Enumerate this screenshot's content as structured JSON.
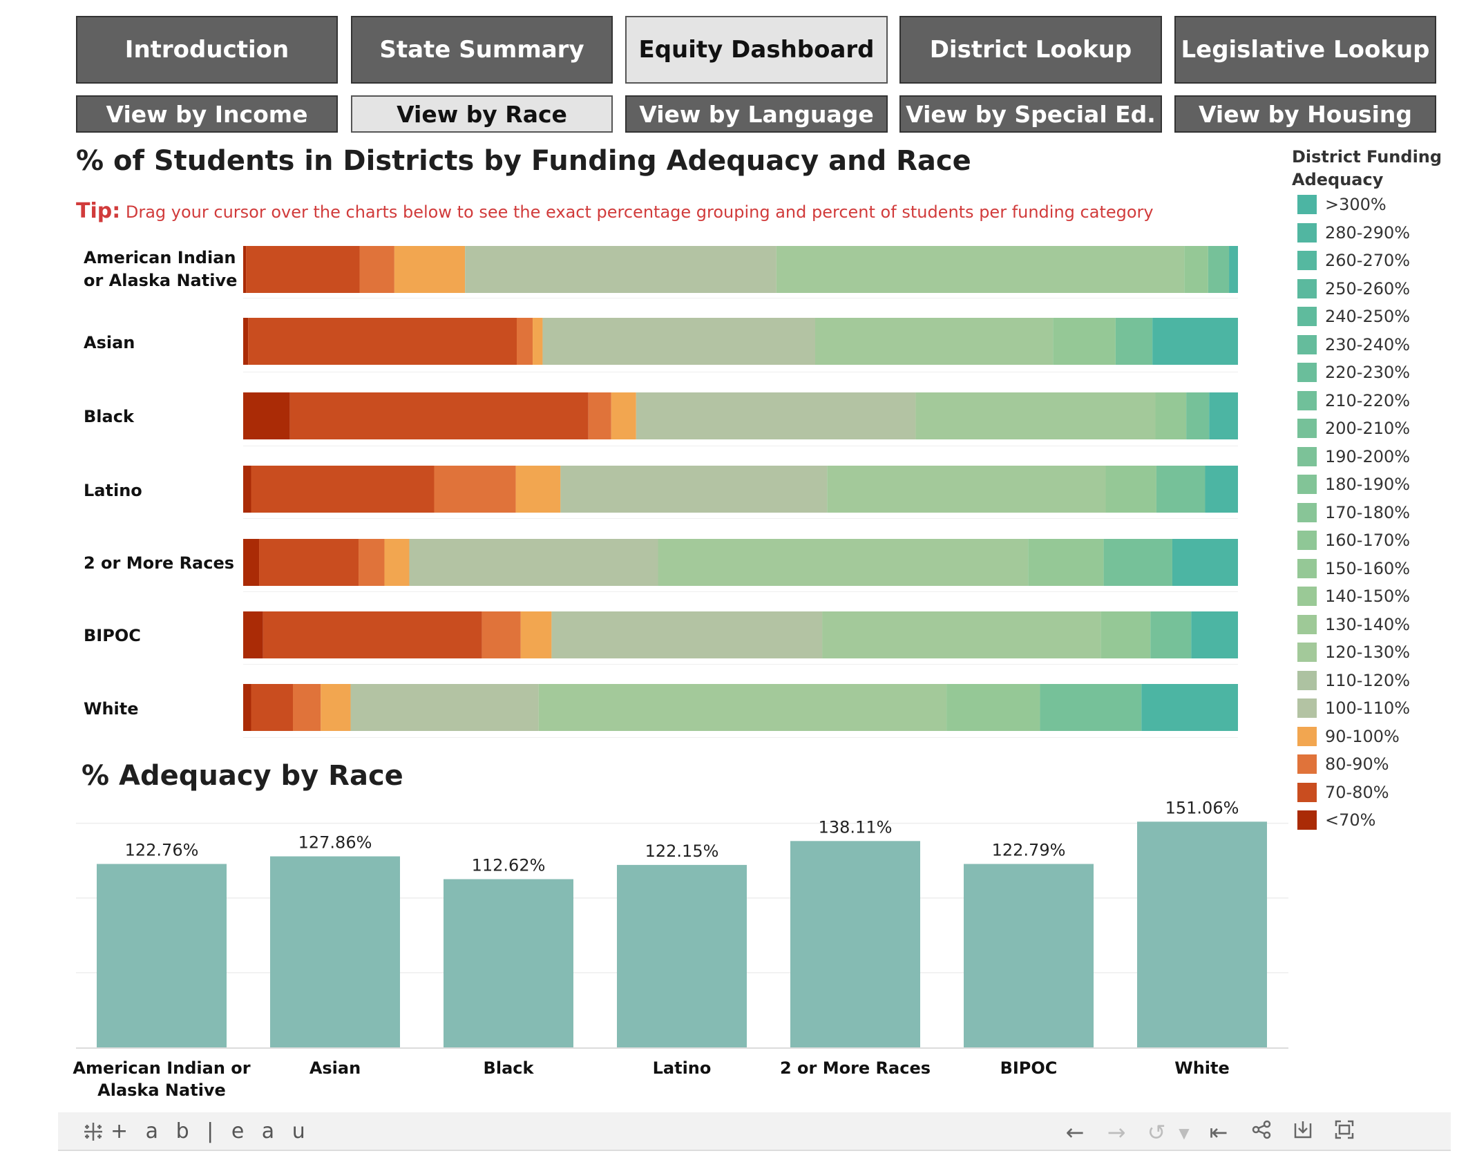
{
  "nav": {
    "top": [
      "Introduction",
      "State Summary",
      "Equity Dashboard",
      "District Lookup",
      "Legislative Lookup"
    ],
    "top_active": 2,
    "sub": [
      "View by Income",
      "View by Race",
      "View by Language",
      "View by Special Ed.",
      "View by Housing"
    ],
    "sub_active": 1
  },
  "stacked_title": "% of Students in Districts by Funding Adequacy and Race",
  "tip": {
    "prefix": "Tip:",
    "text": "Drag your cursor over the charts below to see the exact percentage grouping and percent of students per funding category"
  },
  "legend": {
    "title": "District Funding Adequacy",
    "items": [
      ">300%",
      "280-290%",
      "260-270%",
      "250-260%",
      "240-250%",
      "230-240%",
      "220-230%",
      "210-220%",
      "200-210%",
      "190-200%",
      "180-190%",
      "170-180%",
      "160-170%",
      "150-160%",
      "140-150%",
      "130-140%",
      "120-130%",
      "110-120%",
      "100-110%",
      "90-100%",
      "80-90%",
      "70-80%",
      "<70%"
    ],
    "colors": [
      "#4cb5a3",
      "#51b6a1",
      "#55b8a0",
      "#5bb99e",
      "#5fbb9d",
      "#65bc9c",
      "#6abe9b",
      "#70c09a",
      "#76c199",
      "#7cc298",
      "#82c497",
      "#88c597",
      "#8fc796",
      "#95c896",
      "#9ac996",
      "#9ec997",
      "#a3c99a",
      "#adc2a1",
      "#b3c3a3",
      "#f2a650",
      "#e0733a",
      "#c94d1f",
      "#aa2b06"
    ]
  },
  "chart_data": [
    {
      "type": "bar",
      "orientation": "horizontal",
      "stacked": true,
      "title": "% of Students in Districts by Funding Adequacy and Race",
      "xlim": [
        0,
        100
      ],
      "categories": [
        "American Indian or Alaska Native",
        "Asian",
        "Black",
        "Latino",
        "2 or More Races",
        "BIPOC",
        "White"
      ],
      "series": [
        {
          "name": "<70%",
          "color": "#aa2b06",
          "values": [
            0.3,
            0.5,
            4.7,
            0.8,
            1.6,
            2.0,
            0.8
          ]
        },
        {
          "name": "70-80%",
          "color": "#c94d1f",
          "values": [
            11.4,
            27.0,
            30.0,
            18.4,
            10.0,
            22.0,
            4.2
          ]
        },
        {
          "name": "80-90%",
          "color": "#e0733a",
          "values": [
            3.5,
            1.6,
            2.3,
            8.2,
            2.6,
            3.9,
            2.8
          ]
        },
        {
          "name": "90-100%",
          "color": "#f2a650",
          "values": [
            7.1,
            1.0,
            2.5,
            4.5,
            2.5,
            3.1,
            3.0
          ]
        },
        {
          "name": "100-110%",
          "color": "#b3c3a3",
          "values": [
            31.3,
            27.4,
            28.1,
            26.8,
            25.0,
            27.2,
            18.9
          ]
        },
        {
          "name": "120-130%",
          "color": "#a3c99a",
          "values": [
            41.0,
            23.9,
            24.1,
            28.0,
            37.2,
            28.0,
            41.0
          ]
        },
        {
          "name": "150-160%",
          "color": "#95c896",
          "values": [
            2.4,
            6.3,
            3.1,
            5.1,
            7.6,
            5.0,
            9.4
          ]
        },
        {
          "name": "200-210%",
          "color": "#76c199",
          "values": [
            2.1,
            3.7,
            2.3,
            4.9,
            6.9,
            4.1,
            10.2
          ]
        },
        {
          "name": ">300%",
          "color": "#4cb5a3",
          "values": [
            0.9,
            8.6,
            2.9,
            3.3,
            6.6,
            4.7,
            9.7
          ]
        }
      ]
    },
    {
      "type": "bar",
      "title": "% Adequacy by Race",
      "categories": [
        "American Indian or Alaska Native",
        "Asian",
        "Black",
        "Latino",
        "2 or More Races",
        "BIPOC",
        "White"
      ],
      "values": [
        122.76,
        127.86,
        112.62,
        122.15,
        138.11,
        122.79,
        151.06
      ],
      "labels": [
        "122.76%",
        "127.86%",
        "112.62%",
        "122.15%",
        "138.11%",
        "122.79%",
        "151.06%"
      ],
      "ylim": [
        0,
        160
      ],
      "bar_color": "#85bbb3"
    }
  ],
  "toolbar": {
    "logo": "+ a b | e a u",
    "icons": [
      "undo-icon",
      "redo-icon",
      "replay-icon",
      "replay-dropdown-icon",
      "revert-icon",
      "share-icon",
      "download-icon",
      "fullscreen-icon"
    ]
  }
}
